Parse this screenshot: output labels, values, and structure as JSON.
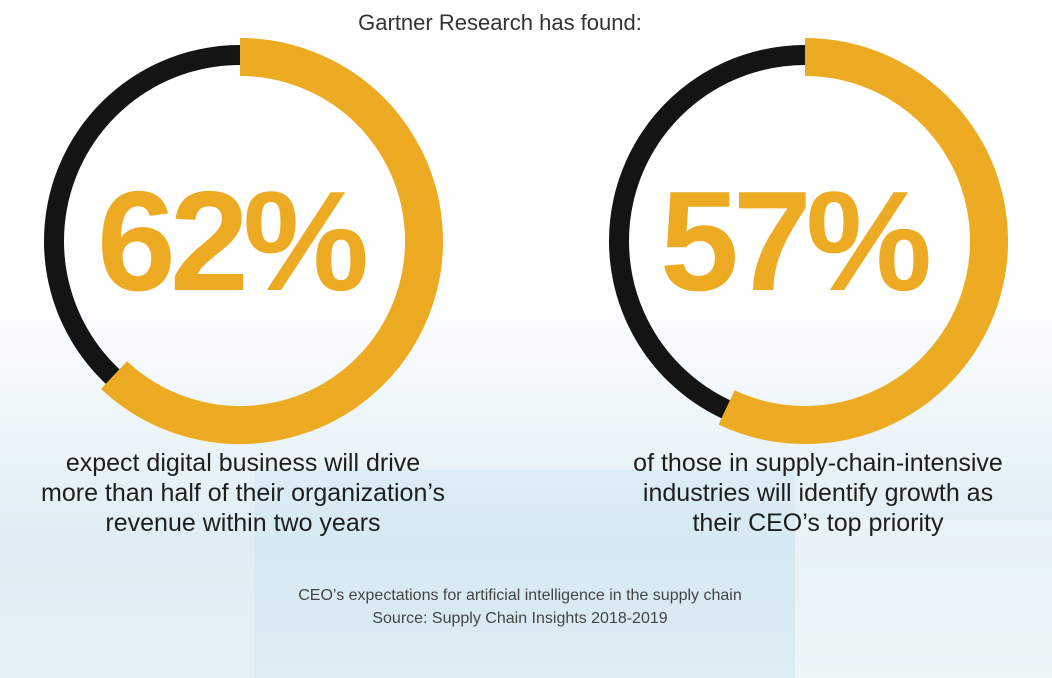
{
  "title": "Gartner Research has found:",
  "colors": {
    "accent": "#ECAB23",
    "remainder": "#141414",
    "text": "#1e1e1e"
  },
  "chart_data": {
    "type": "pie",
    "title": "Gartner Research has found:",
    "charts": [
      {
        "value": 62,
        "label": "62%",
        "caption": [
          "expect digital business will drive",
          "more than half of their organization’s",
          "revenue within two years"
        ]
      },
      {
        "value": 57,
        "label": "57%",
        "caption": [
          "of those in supply-chain-intensive",
          "industries will identify growth as",
          "their CEO’s top priority"
        ]
      }
    ]
  },
  "footnote": {
    "line1": "CEO’s expectations for artificial intelligence in the supply chain",
    "line2": "Source: Supply Chain Insights 2018-2019"
  }
}
